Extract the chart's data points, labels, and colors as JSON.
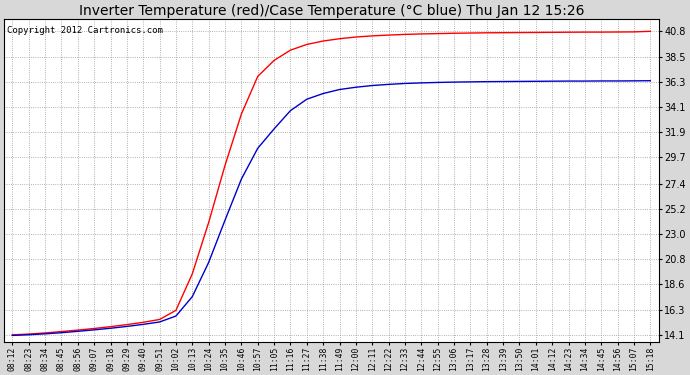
{
  "title": "Inverter Temperature (red)/Case Temperature (°C blue) Thu Jan 12 15:26",
  "copyright": "Copyright 2012 Cartronics.com",
  "yticks": [
    14.1,
    16.3,
    18.6,
    20.8,
    23.0,
    25.2,
    27.4,
    29.7,
    31.9,
    34.1,
    36.3,
    38.5,
    40.8
  ],
  "ylim": [
    13.5,
    41.8
  ],
  "xtick_labels": [
    "08:12",
    "08:23",
    "08:34",
    "08:45",
    "08:56",
    "09:07",
    "09:18",
    "09:29",
    "09:40",
    "09:51",
    "10:02",
    "10:13",
    "10:24",
    "10:35",
    "10:46",
    "10:57",
    "11:05",
    "11:16",
    "11:27",
    "11:38",
    "11:49",
    "12:00",
    "12:11",
    "12:22",
    "12:33",
    "12:44",
    "12:55",
    "13:06",
    "13:17",
    "13:28",
    "13:39",
    "13:50",
    "14:01",
    "14:12",
    "14:23",
    "14:34",
    "14:45",
    "14:56",
    "15:07",
    "15:18"
  ],
  "background_color": "#d8d8d8",
  "plot_bg_color": "#ffffff",
  "grid_color": "#999999",
  "red_color": "#ff0000",
  "blue_color": "#0000cc",
  "title_fontsize": 10,
  "copyright_fontsize": 6.5,
  "red_data": [
    14.15,
    14.22,
    14.32,
    14.44,
    14.57,
    14.71,
    14.87,
    15.05,
    15.25,
    15.5,
    16.3,
    19.5,
    24.0,
    29.0,
    33.5,
    36.8,
    38.2,
    39.1,
    39.6,
    39.9,
    40.1,
    40.25,
    40.35,
    40.42,
    40.48,
    40.52,
    40.55,
    40.58,
    40.6,
    40.62,
    40.63,
    40.64,
    40.65,
    40.66,
    40.67,
    40.68,
    40.68,
    40.69,
    40.7,
    40.75
  ],
  "blue_data": [
    14.1,
    14.16,
    14.24,
    14.34,
    14.46,
    14.59,
    14.73,
    14.89,
    15.07,
    15.28,
    15.8,
    17.5,
    20.5,
    24.2,
    27.8,
    30.5,
    32.2,
    33.8,
    34.8,
    35.3,
    35.65,
    35.85,
    36.0,
    36.1,
    36.18,
    36.23,
    36.27,
    36.3,
    36.32,
    36.34,
    36.35,
    36.36,
    36.37,
    36.38,
    36.39,
    36.39,
    36.4,
    36.4,
    36.41,
    36.42
  ]
}
